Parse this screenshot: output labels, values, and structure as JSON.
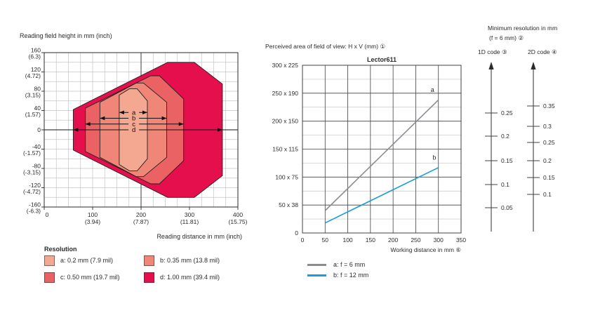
{
  "colors": {
    "ink": "#2b2b2b",
    "grid_minor": "#c3c5c8",
    "grid_major": "#3f4144",
    "scale_line": "#3f4144"
  },
  "chart_data": [
    {
      "id": "reading_field",
      "type": "area",
      "title": "Reading field height in mm (inch)",
      "xlabel": "Reading distance in mm (inch)",
      "xlim": [
        0,
        400
      ],
      "ylim": [
        -160,
        160
      ],
      "x_minor_step": 25,
      "y_minor_step": 20,
      "x_ticks": [
        {
          "v": 0,
          "mm": "0",
          "inch": ""
        },
        {
          "v": 100,
          "mm": "100",
          "inch": "(3.94)"
        },
        {
          "v": 200,
          "mm": "200",
          "inch": "(7.87)"
        },
        {
          "v": 300,
          "mm": "300",
          "inch": "(11.81)"
        },
        {
          "v": 400,
          "mm": "400",
          "inch": "(15.75)"
        }
      ],
      "y_ticks": [
        {
          "v": 160,
          "mm": "160",
          "inch": "(6.3)"
        },
        {
          "v": 120,
          "mm": "120",
          "inch": "(4.72)"
        },
        {
          "v": 80,
          "mm": "80",
          "inch": "(3.15)"
        },
        {
          "v": 40,
          "mm": "40",
          "inch": "(1.57)"
        },
        {
          "v": 0,
          "mm": "0",
          "inch": ""
        },
        {
          "v": -40,
          "mm": "-40",
          "inch": "(-1.57)"
        },
        {
          "v": -80,
          "mm": "-80",
          "inch": "(-3.15)"
        },
        {
          "v": -120,
          "mm": "-120",
          "inch": "(-4.72)"
        },
        {
          "v": -160,
          "mm": "-160",
          "inch": "(-6.3)"
        }
      ],
      "legend_title": "Resolution",
      "series": [
        {
          "name": "a",
          "label": "a: 0.2 mm (7.9 mil)",
          "color": "#F4A791",
          "points": [
            [
              155,
              72
            ],
            [
              176,
              85
            ],
            [
              192,
              85
            ],
            [
              213,
              60
            ],
            [
              213,
              -60
            ],
            [
              192,
              -85
            ],
            [
              176,
              -85
            ],
            [
              155,
              -72
            ]
          ]
        },
        {
          "name": "b",
          "label": "b: 0.35 mm (13.8 mil)",
          "color": "#F08678",
          "points": [
            [
              115,
              57
            ],
            [
              190,
              97
            ],
            [
              205,
              97
            ],
            [
              253,
              57
            ],
            [
              253,
              -57
            ],
            [
              205,
              -97
            ],
            [
              190,
              -97
            ],
            [
              115,
              -57
            ]
          ]
        },
        {
          "name": "c",
          "label": "c: 0.50 mm (19.7 mil)",
          "color": "#EB6265",
          "points": [
            [
              85,
              45
            ],
            [
              220,
              112
            ],
            [
              238,
              112
            ],
            [
              288,
              64
            ],
            [
              288,
              -64
            ],
            [
              238,
              -112
            ],
            [
              220,
              -112
            ],
            [
              85,
              -45
            ]
          ]
        },
        {
          "name": "d",
          "label": "d: 1.00 mm (39.4 mil)",
          "color": "#E60F4E",
          "points": [
            [
              60,
              42
            ],
            [
              255,
              140
            ],
            [
              310,
              140
            ],
            [
              368,
              95
            ],
            [
              368,
              -95
            ],
            [
              310,
              -140
            ],
            [
              255,
              -140
            ],
            [
              60,
              -42
            ]
          ]
        }
      ],
      "span_arrows": [
        {
          "name": "a",
          "y": 36,
          "from": 155,
          "to": 213,
          "label_x": 185,
          "full_width": false
        },
        {
          "name": "b",
          "y": 24,
          "from": 115,
          "to": 253,
          "label_x": 185,
          "full_width": false
        },
        {
          "name": "c",
          "y": 12,
          "from": 85,
          "to": 288,
          "label_x": 185,
          "full_width": false
        },
        {
          "name": "d",
          "y": 0,
          "from": 60,
          "to": 368,
          "label_x": 185,
          "full_width": true
        }
      ]
    },
    {
      "id": "field_of_view",
      "type": "line",
      "header": "Perceived area of field of view: H x V (mm) ①",
      "title": "Lector611",
      "xlabel": "Working distance in mm ⑥",
      "xlim": [
        0,
        350
      ],
      "ylim": [
        0,
        300
      ],
      "y_minor_step": 25,
      "x_ticks": [
        0,
        50,
        100,
        150,
        200,
        250,
        300,
        350
      ],
      "y_ticks": [
        {
          "v": 300,
          "label": "300 x 225"
        },
        {
          "v": 250,
          "label": "250 x 190"
        },
        {
          "v": 200,
          "label": "200 x 150"
        },
        {
          "v": 150,
          "label": "150 x 115"
        },
        {
          "v": 100,
          "label": "100 x 75"
        },
        {
          "v": 50,
          "label": "50 x 38"
        },
        {
          "v": 0,
          "label": "0"
        }
      ],
      "series": [
        {
          "name": "a",
          "label": "a: f = 6 mm",
          "color": "#8C8D90",
          "points": [
            [
              50,
              40
            ],
            [
              300,
              238
            ]
          ],
          "annot": {
            "text": "a",
            "x": 283,
            "y": 252
          }
        },
        {
          "name": "b",
          "label": "b: f = 12 mm",
          "color": "#1B9DD9",
          "points": [
            [
              50,
              18
            ],
            [
              300,
              117
            ]
          ],
          "annot": {
            "text": "b",
            "x": 287,
            "y": 131
          }
        }
      ]
    },
    {
      "id": "min_resolution",
      "type": "scale",
      "title": "Minimum resolution in mm",
      "subtitle": "(f = 6 mm) ②",
      "scales": [
        {
          "label": "1D code ③",
          "ticks": [
            {
              "v": "0.25",
              "pos": 75
            },
            {
              "v": "0.2",
              "pos": 108
            },
            {
              "v": "0.15",
              "pos": 143
            },
            {
              "v": "0.1",
              "pos": 177
            },
            {
              "v": "0.05",
              "pos": 210
            }
          ]
        },
        {
          "label": "2D code ④",
          "ticks": [
            {
              "v": "0.35",
              "pos": 65
            },
            {
              "v": "0.3",
              "pos": 94
            },
            {
              "v": "0.25",
              "pos": 117
            },
            {
              "v": "0.2",
              "pos": 143
            },
            {
              "v": "0.15",
              "pos": 167
            },
            {
              "v": "0.1",
              "pos": 191
            }
          ]
        }
      ]
    }
  ]
}
